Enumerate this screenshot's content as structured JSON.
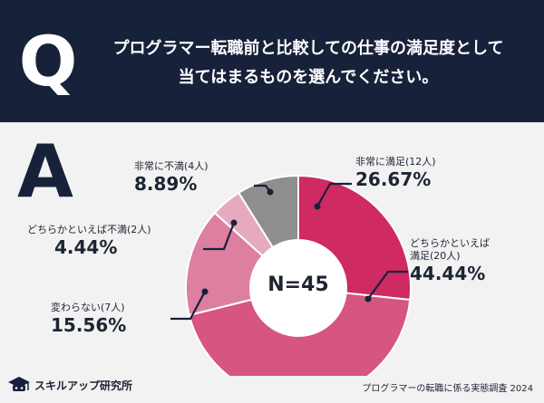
{
  "header": {
    "q_letter": "Q",
    "question_line1": "プログラマー転職前と比較しての仕事の満足度として",
    "question_line2": "当てはまるものを選んでください。"
  },
  "answer_letter": "A",
  "chart_data": {
    "type": "pie",
    "donut": true,
    "center_label": "N=45",
    "slices": [
      {
        "label": "非常に満足(12人)",
        "count": 12,
        "percent": "26.67%",
        "color": "#cf2a62"
      },
      {
        "label": "どちらかといえば満足(20人)",
        "label_line1": "どちらかといえば",
        "label_line2": "満足(20人)",
        "count": 20,
        "percent": "44.44%",
        "color": "#d65582"
      },
      {
        "label": "変わらない(7人)",
        "count": 7,
        "percent": "15.56%",
        "color": "#dc7fa0"
      },
      {
        "label": "どちらかといえば不満(2人)",
        "count": 2,
        "percent": "4.44%",
        "color": "#e5aabf"
      },
      {
        "label": "非常に不満(4人)",
        "count": 4,
        "percent": "8.89%",
        "color": "#8e8e8e"
      }
    ]
  },
  "footer": {
    "brand": "スキルアップ研究所",
    "survey_title": "プログラマーの転職に係る実態調査 2024"
  }
}
